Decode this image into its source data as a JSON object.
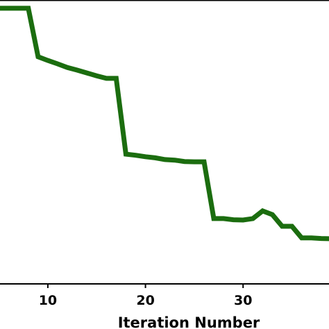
{
  "chart_data": {
    "type": "line",
    "xlabel": "Iteration Number",
    "ylabel": "",
    "title": "",
    "grid": false,
    "x_ticks": [
      10,
      20,
      30
    ],
    "xlim": [
      5.1,
      38.8
    ],
    "ylim": [
      0,
      100
    ],
    "series": [
      {
        "color": "#1b6d0f",
        "x": [
          5,
          6,
          7,
          8,
          9,
          10,
          11,
          12,
          13,
          14,
          15,
          16,
          17,
          18,
          19,
          20,
          21,
          22,
          23,
          24,
          25,
          26,
          27,
          28,
          29,
          30,
          31,
          32,
          33,
          34,
          35,
          36,
          37,
          38,
          39
        ],
        "y": [
          97.1,
          97.1,
          97.1,
          97.1,
          80.0,
          78.7,
          77.5,
          76.2,
          75.3,
          74.3,
          73.3,
          72.4,
          72.4,
          45.7,
          45.3,
          44.8,
          44.4,
          43.8,
          43.6,
          43.1,
          43.0,
          43.0,
          23.0,
          23.0,
          22.6,
          22.5,
          23.0,
          25.7,
          24.4,
          20.3,
          20.3,
          16.2,
          16.2,
          16.0,
          15.9
        ]
      }
    ]
  }
}
